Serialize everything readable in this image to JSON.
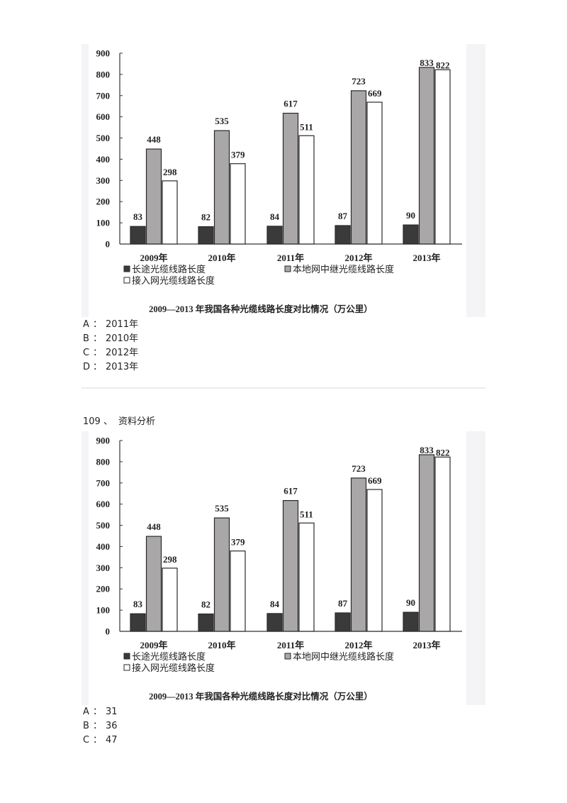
{
  "question_1": {
    "options": [
      {
        "key": "A",
        "sep": "：",
        "text": "2011年"
      },
      {
        "key": "B",
        "sep": "：",
        "text": "2010年"
      },
      {
        "key": "C",
        "sep": "：",
        "text": "2012年"
      },
      {
        "key": "D",
        "sep": "：",
        "text": "2013年"
      }
    ]
  },
  "question_2": {
    "number": "109",
    "number_sep": "、",
    "title": "资料分析",
    "options": [
      {
        "key": "A",
        "sep": "：",
        "text": "31"
      },
      {
        "key": "B",
        "sep": "：",
        "text": "36"
      },
      {
        "key": "C",
        "sep": "：",
        "text": "47"
      }
    ]
  },
  "colors": {
    "series_dark": "#3a3a3a",
    "series_gray": "#a9a7a8",
    "series_white": "#ffffff",
    "bar_border": "#2a2a2a",
    "panel_bg": "#f4f4f6"
  },
  "chart_data": {
    "type": "bar",
    "title": "2009—2013 年我国各种光缆线路长度对比情况（万公里）",
    "categories": [
      "2009年",
      "2010年",
      "2011年",
      "2012年",
      "2013年"
    ],
    "series": [
      {
        "name": "长途光缆线路长度",
        "values": [
          83,
          82,
          84,
          87,
          90
        ]
      },
      {
        "name": "本地网中继光缆线路长度",
        "values": [
          448,
          535,
          617,
          723,
          833
        ]
      },
      {
        "name": "接入网光缆线路长度",
        "values": [
          298,
          379,
          511,
          669,
          822
        ]
      }
    ],
    "yticks": [
      0,
      100,
      200,
      300,
      400,
      500,
      600,
      700,
      800,
      900
    ],
    "ylim": [
      0,
      900
    ],
    "xlabel": "",
    "ylabel": "",
    "grid": false,
    "legend_position": "bottom",
    "data_labels": true
  }
}
